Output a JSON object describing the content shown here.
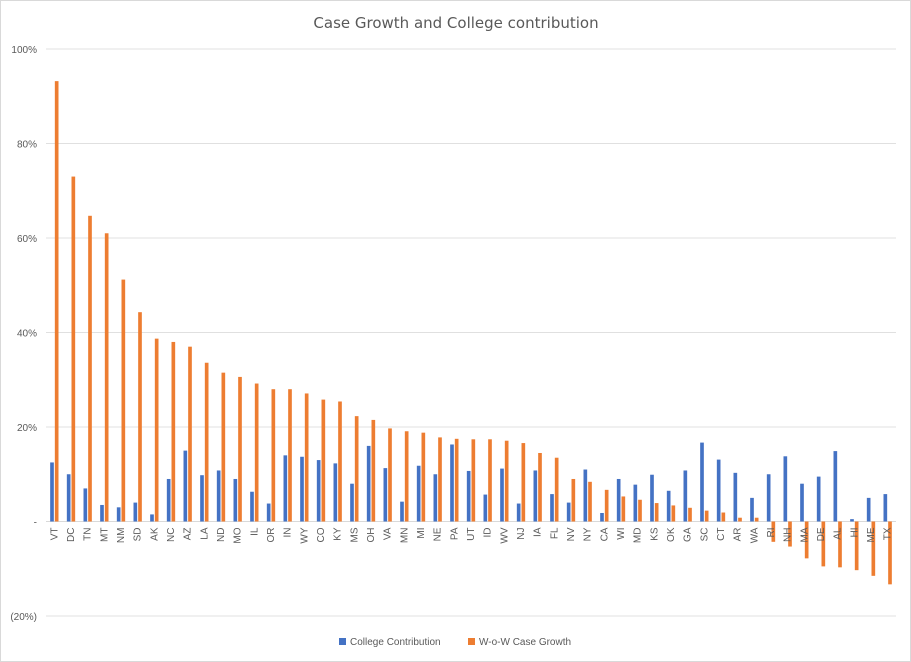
{
  "chart_data": {
    "type": "bar",
    "title": "Case Growth and College contribution",
    "xlabel": "",
    "ylabel": "",
    "ylim": [
      -20,
      100
    ],
    "yticks": [
      -20,
      0,
      20,
      40,
      60,
      80,
      100
    ],
    "ytick_labels": [
      "(20%)",
      "-",
      "20%",
      "40%",
      "60%",
      "80%",
      "100%"
    ],
    "grid": true,
    "legend_position": "bottom",
    "categories": [
      "VT",
      "DC",
      "TN",
      "MT",
      "NM",
      "SD",
      "AK",
      "NC",
      "AZ",
      "LA",
      "ND",
      "MO",
      "IL",
      "OR",
      "IN",
      "WY",
      "CO",
      "KY",
      "MS",
      "OH",
      "VA",
      "MN",
      "MI",
      "NE",
      "PA",
      "UT",
      "ID",
      "WV",
      "NJ",
      "IA",
      "FL",
      "NV",
      "NY",
      "CA",
      "WI",
      "MD",
      "KS",
      "OK",
      "GA",
      "SC",
      "CT",
      "AR",
      "WA",
      "RI",
      "NH",
      "MA",
      "DE",
      "AL",
      "HI",
      "ME",
      "TX"
    ],
    "series": [
      {
        "name": "College Contribution",
        "color": "#4472c4",
        "values": [
          12.5,
          10,
          7,
          3.5,
          3,
          4,
          1.5,
          9,
          15,
          9.8,
          10.8,
          9,
          6.3,
          3.8,
          14,
          13.7,
          13,
          12.3,
          8,
          16,
          11.3,
          4.2,
          11.8,
          10,
          16.3,
          10.7,
          5.7,
          11.2,
          3.8,
          10.8,
          5.8,
          4,
          11,
          1.8,
          9,
          7.8,
          9.9,
          6.5,
          10.8,
          16.7,
          13.1,
          10.3,
          5,
          10,
          13.8,
          8,
          9.5,
          14.9,
          0.5,
          5,
          5.8
        ]
      },
      {
        "name": "W-o-W Case Growth",
        "color": "#ed7d31",
        "values": [
          93.2,
          73,
          64.7,
          61,
          51.2,
          44.3,
          38.7,
          38,
          37,
          33.6,
          31.5,
          30.6,
          29.2,
          28,
          28,
          27.1,
          25.8,
          25.4,
          22.3,
          21.5,
          19.7,
          19.1,
          18.8,
          17.8,
          17.5,
          17.4,
          17.4,
          17.1,
          16.6,
          14.5,
          13.5,
          9,
          8.4,
          6.7,
          5.3,
          4.6,
          3.9,
          3.4,
          2.9,
          2.3,
          1.9,
          0.8,
          0.8,
          -4.3,
          -5.3,
          -7.8,
          -9.5,
          -9.7,
          -10.3,
          -11.5,
          -13.3
        ]
      }
    ]
  }
}
